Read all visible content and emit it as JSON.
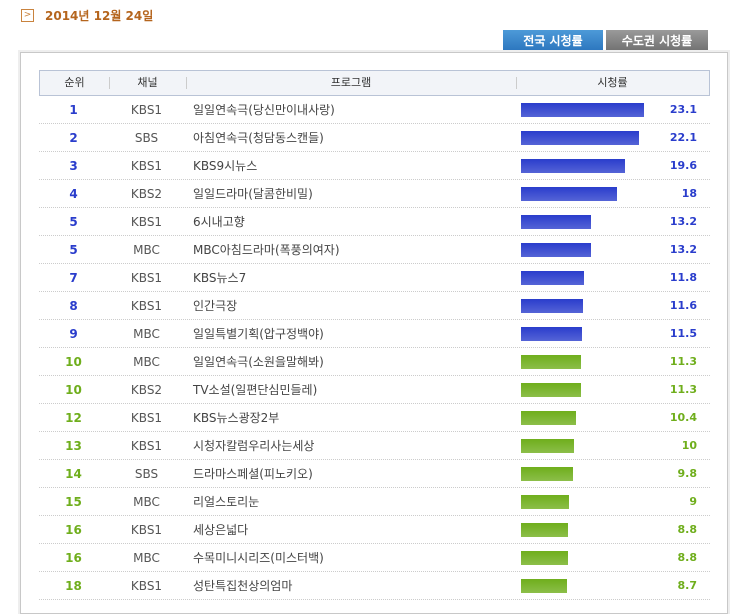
{
  "header": {
    "date": "2014년 12월 24일"
  },
  "tabs": [
    "전국 시청률",
    "수도권 시청률"
  ],
  "table": {
    "columns": [
      "순위",
      "채널",
      "프로그램",
      "시청률"
    ],
    "rows": [
      {
        "rank": 1,
        "channel": "KBS1",
        "program": "일일연속극(당신만이내사랑)",
        "rating": 23.1,
        "color": "#2a3dcc"
      },
      {
        "rank": 2,
        "channel": "SBS",
        "program": "아침연속극(청담동스캔들)",
        "rating": 22.1,
        "color": "#2a3dcc"
      },
      {
        "rank": 3,
        "channel": "KBS1",
        "program": "KBS9시뉴스",
        "rating": 19.6,
        "color": "#2a3dcc"
      },
      {
        "rank": 4,
        "channel": "KBS2",
        "program": "일일드라마(달콤한비밀)",
        "rating": 18,
        "color": "#2a3dcc"
      },
      {
        "rank": 5,
        "channel": "KBS1",
        "program": "6시내고향",
        "rating": 13.2,
        "color": "#2a3dcc"
      },
      {
        "rank": 5,
        "channel": "MBC",
        "program": "MBC아침드라마(폭풍의여자)",
        "rating": 13.2,
        "color": "#2a3dcc"
      },
      {
        "rank": 7,
        "channel": "KBS1",
        "program": "KBS뉴스7",
        "rating": 11.8,
        "color": "#2a3dcc"
      },
      {
        "rank": 8,
        "channel": "KBS1",
        "program": "인간극장",
        "rating": 11.6,
        "color": "#2a3dcc"
      },
      {
        "rank": 9,
        "channel": "MBC",
        "program": "일일특별기획(압구정백야)",
        "rating": 11.5,
        "color": "#2a3dcc"
      },
      {
        "rank": 10,
        "channel": "MBC",
        "program": "일일연속극(소원을말해봐)",
        "rating": 11.3,
        "color": "#6fae1c"
      },
      {
        "rank": 10,
        "channel": "KBS2",
        "program": "TV소설(일편단심민들레)",
        "rating": 11.3,
        "color": "#6fae1c"
      },
      {
        "rank": 12,
        "channel": "KBS1",
        "program": "KBS뉴스광장2부",
        "rating": 10.4,
        "color": "#6fae1c"
      },
      {
        "rank": 13,
        "channel": "KBS1",
        "program": "시청자칼럼우리사는세상",
        "rating": 10,
        "color": "#6fae1c"
      },
      {
        "rank": 14,
        "channel": "SBS",
        "program": "드라마스페셜(피노키오)",
        "rating": 9.8,
        "color": "#6fae1c"
      },
      {
        "rank": 15,
        "channel": "MBC",
        "program": "리얼스토리눈",
        "rating": 9,
        "color": "#6fae1c"
      },
      {
        "rank": 16,
        "channel": "KBS1",
        "program": "세상은넓다",
        "rating": 8.8,
        "color": "#6fae1c"
      },
      {
        "rank": 16,
        "channel": "MBC",
        "program": "수목미니시리즈(미스터백)",
        "rating": 8.8,
        "color": "#6fae1c"
      },
      {
        "rank": 18,
        "channel": "KBS1",
        "program": "성탄특집천상의엄마",
        "rating": 8.7,
        "color": "#6fae1c"
      }
    ]
  }
}
